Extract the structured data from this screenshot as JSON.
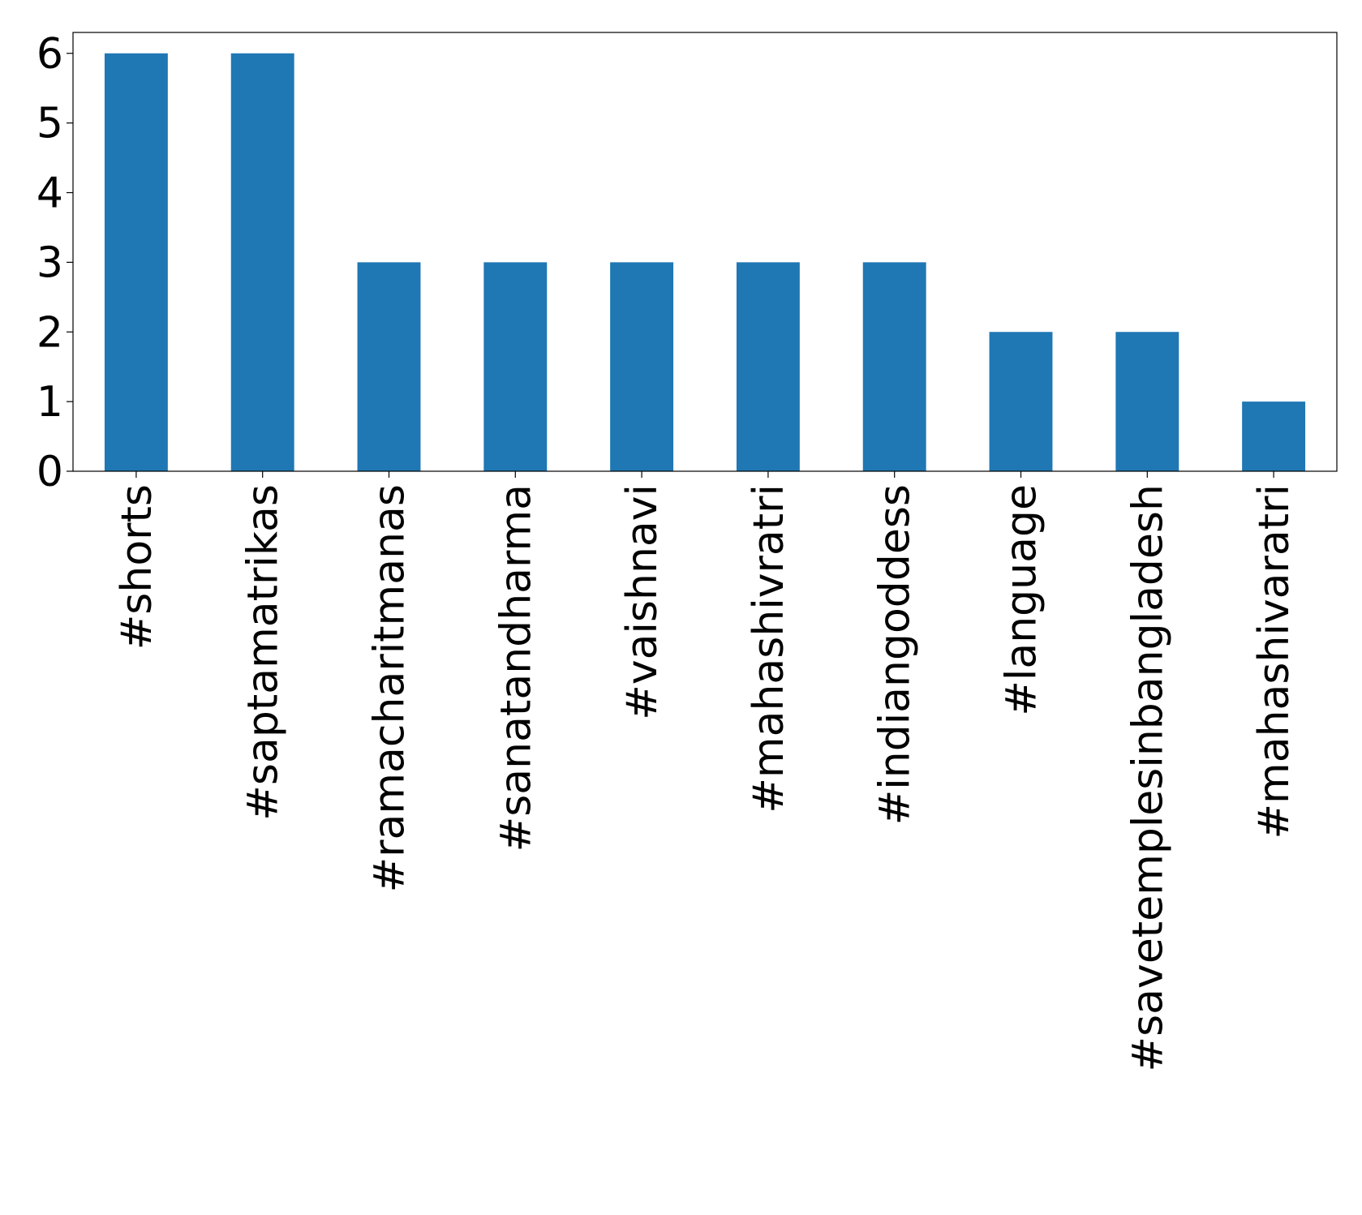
{
  "chart_data": {
    "type": "bar",
    "categories": [
      "#shorts",
      "#saptamatrikas",
      "#ramacharitmanas",
      "#sanatandharma",
      "#vaishnavi",
      "#mahashivratri",
      "#indiangoddess",
      "#language",
      "#savetemplesinbangladesh",
      "#mahashivaratri"
    ],
    "values": [
      6,
      6,
      3,
      3,
      3,
      3,
      3,
      2,
      2,
      1
    ],
    "color": "#1f77b4",
    "ylim": [
      0,
      6.3
    ],
    "yticks": [
      0,
      1,
      2,
      3,
      4,
      5,
      6
    ],
    "grid": false
  }
}
